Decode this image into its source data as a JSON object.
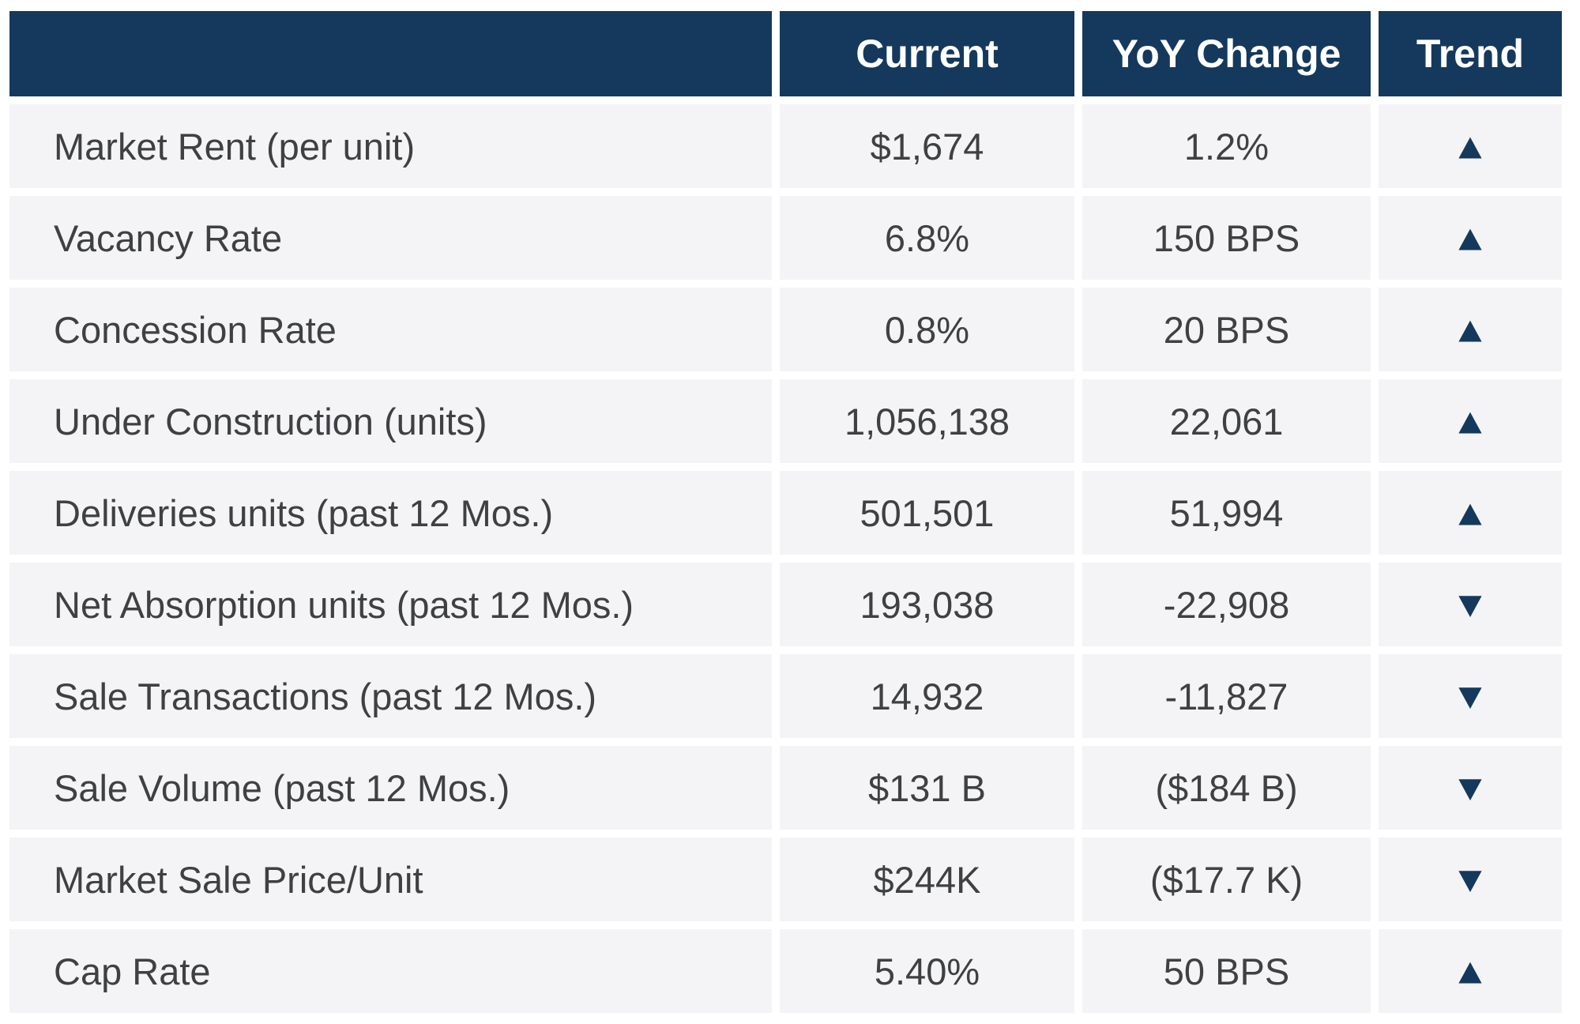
{
  "chart_data": {
    "type": "table",
    "title": "",
    "columns": [
      "",
      "Current",
      "YoY Change",
      "Trend"
    ],
    "rows": [
      {
        "metric": "Market Rent (per unit)",
        "current": "$1,674",
        "yoy_change": "1.2%",
        "trend": "up"
      },
      {
        "metric": "Vacancy Rate",
        "current": "6.8%",
        "yoy_change": "150 BPS",
        "trend": "up"
      },
      {
        "metric": "Concession Rate",
        "current": "0.8%",
        "yoy_change": "20 BPS",
        "trend": "up"
      },
      {
        "metric": "Under Construction (units)",
        "current": "1,056,138",
        "yoy_change": "22,061",
        "trend": "up"
      },
      {
        "metric": "Deliveries units (past 12 Mos.)",
        "current": "501,501",
        "yoy_change": "51,994",
        "trend": "up"
      },
      {
        "metric": "Net Absorption units (past 12 Mos.)",
        "current": "193,038",
        "yoy_change": "-22,908",
        "trend": "down"
      },
      {
        "metric": "Sale Transactions (past 12 Mos.)",
        "current": "14,932",
        "yoy_change": "-11,827",
        "trend": "down"
      },
      {
        "metric": "Sale Volume (past 12 Mos.)",
        "current": "$131 B",
        "yoy_change": "($184 B)",
        "trend": "down"
      },
      {
        "metric": "Market Sale Price/Unit",
        "current": "$244K",
        "yoy_change": "($17.7 K)",
        "trend": "down"
      },
      {
        "metric": "Cap Rate",
        "current": "5.40%",
        "yoy_change": "50 BPS",
        "trend": "up"
      }
    ]
  },
  "icons": {
    "trend_up": "▲",
    "trend_down": "▼"
  },
  "colors": {
    "header_bg": "#14395c",
    "header_text": "#ffffff",
    "row_bg": "#f4f4f6",
    "body_text": "#3f4042",
    "trend_arrow": "#14395c"
  }
}
